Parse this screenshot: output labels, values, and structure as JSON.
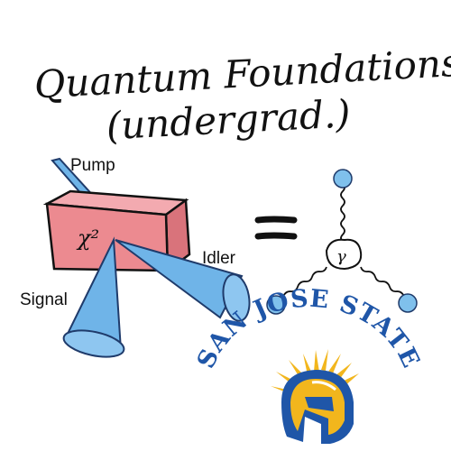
{
  "title": {
    "line1": "Quantum Foundations",
    "line2": "(undergrad.)"
  },
  "crystal": {
    "symbol": "χ²"
  },
  "beams": {
    "pump": "Pump",
    "signal": "Signal",
    "idler": "Idler"
  },
  "equals": "=",
  "vertex": {
    "symbol": "γ"
  },
  "logo": {
    "text": "SAN JOSE STATE",
    "name": "spartan-helmet-logo"
  },
  "colors": {
    "crystal_fill": "#ec8a90",
    "beam_fill": "#6fb4e8",
    "node_fill": "#7fc0ec",
    "logo_blue": "#1f56a8",
    "logo_gold": "#f2b61d",
    "ink": "#111111"
  }
}
